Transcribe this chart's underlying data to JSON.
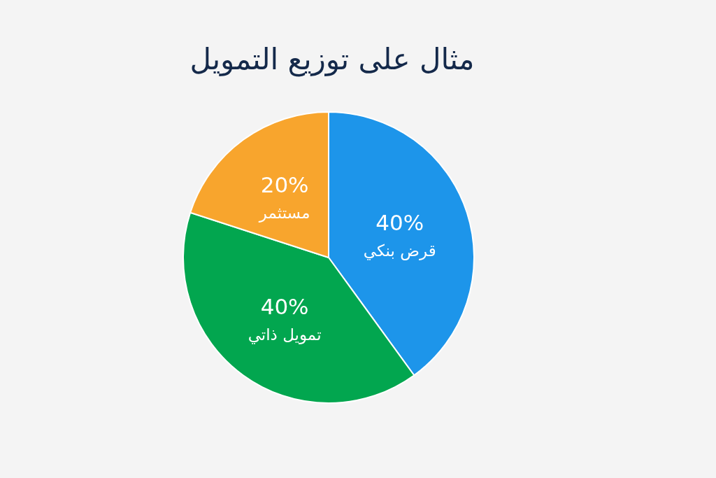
{
  "chart_data": {
    "type": "pie",
    "title": "مثال على توزيع التمويل",
    "categories": [
      "قرض بنكي",
      "تمويل ذاتي",
      "مستثمر"
    ],
    "values": [
      40,
      40,
      20
    ],
    "value_labels": [
      "40%",
      "40%",
      "20%"
    ],
    "colors": [
      "#1d95ea",
      "#02a64f",
      "#f8a52d"
    ],
    "legend": false
  }
}
